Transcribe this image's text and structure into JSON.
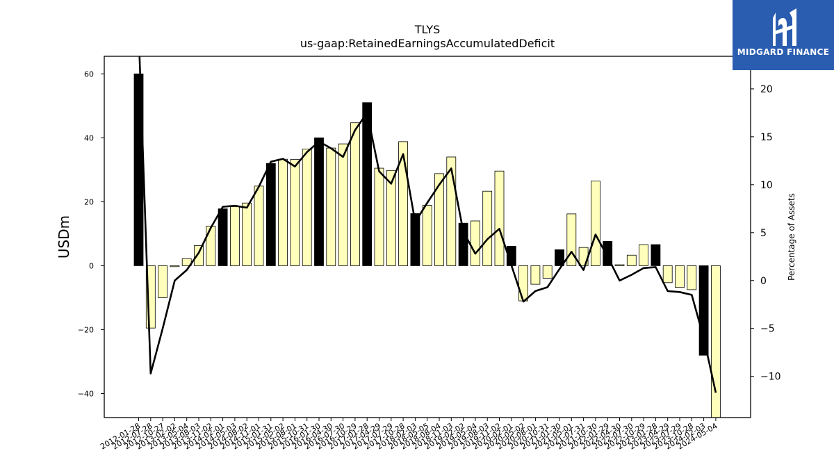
{
  "logo": {
    "text": "MIDGARD FINANCE"
  },
  "chart_data": {
    "type": "bar",
    "title": "TLYS",
    "subtitle": "us-gaap:RetainedEarningsAccumulatedDeficit",
    "ylabel": "USDm",
    "y2label": "Percentage of Assets",
    "ylim": [
      -47.5,
      65.5
    ],
    "y2lim": [
      -14.3,
      23.4
    ],
    "yticks": [
      -40,
      -20,
      0,
      20,
      40,
      60
    ],
    "y2ticks": [
      -10,
      -5,
      0,
      5,
      10,
      15,
      20
    ],
    "colors": {
      "bar_q4": "#000000",
      "bar_other": "#ffffbb",
      "line": "#000000"
    },
    "categories": [
      "2012-01-28",
      "2012-07-28",
      "2012-10-27",
      "2013-02-02",
      "2013-05-04",
      "2013-08-03",
      "2013-11-02",
      "2014-02-01",
      "2014-05-03",
      "2014-08-02",
      "2014-11-01",
      "2015-01-31",
      "2015-05-02",
      "2015-08-01",
      "2015-10-31",
      "2016-01-30",
      "2016-04-30",
      "2016-07-30",
      "2016-10-29",
      "2017-01-28",
      "2017-04-29",
      "2017-07-29",
      "2017-10-28",
      "2018-02-03",
      "2018-05-05",
      "2018-08-04",
      "2018-11-03",
      "2019-02-02",
      "2019-05-04",
      "2019-08-03",
      "2019-11-02",
      "2020-02-01",
      "2020-05-02",
      "2020-08-01",
      "2020-10-31",
      "2021-01-30",
      "2021-05-01",
      "2021-07-31",
      "2021-10-30",
      "2022-01-29",
      "2022-04-30",
      "2022-07-30",
      "2022-10-29",
      "2023-01-28",
      "2023-04-29",
      "2023-07-29",
      "2023-10-28",
      "2024-02-03",
      "2024-05-04"
    ],
    "values": [
      60,
      -19.5,
      -10,
      -0.3,
      2.2,
      6.3,
      12.4,
      17.8,
      18.5,
      19.6,
      24.9,
      32,
      33.3,
      33.2,
      36.5,
      40,
      36.8,
      38.1,
      44.7,
      51,
      30.5,
      29.8,
      38.8,
      16.3,
      18.9,
      28.8,
      34,
      13.3,
      14,
      23.3,
      29.6,
      6.1,
      -11,
      -5.8,
      -3.9,
      5,
      16.2,
      5.7,
      26.5,
      7.6,
      0.3,
      3.3,
      6.6,
      6.6,
      -5.3,
      -6.8,
      -7.5,
      -28,
      -47.5
    ],
    "q4_flags": [
      true,
      false,
      false,
      false,
      false,
      false,
      false,
      true,
      false,
      false,
      false,
      true,
      false,
      false,
      false,
      true,
      false,
      false,
      false,
      true,
      false,
      false,
      false,
      true,
      false,
      false,
      false,
      true,
      false,
      false,
      false,
      true,
      false,
      false,
      false,
      true,
      false,
      false,
      false,
      true,
      false,
      false,
      false,
      true,
      false,
      false,
      false,
      true,
      false
    ],
    "pct_of_assets": [
      26,
      -9.7,
      -5,
      0,
      1.1,
      2.9,
      5.5,
      7.7,
      7.8,
      7.6,
      9.8,
      12.4,
      12.7,
      11.9,
      13.4,
      14.5,
      13.8,
      12.9,
      15.7,
      17.5,
      11.4,
      10.1,
      13.2,
      6.1,
      8.1,
      10,
      11.7,
      5.1,
      2.8,
      4.3,
      5.4,
      1.6,
      -2.2,
      -1.1,
      -0.7,
      1.2,
      3,
      1.1,
      4.8,
      2.5,
      0,
      0.6,
      1.3,
      1.4,
      -1.1,
      -1.2,
      -1.5,
      -6,
      -11.7
    ]
  }
}
